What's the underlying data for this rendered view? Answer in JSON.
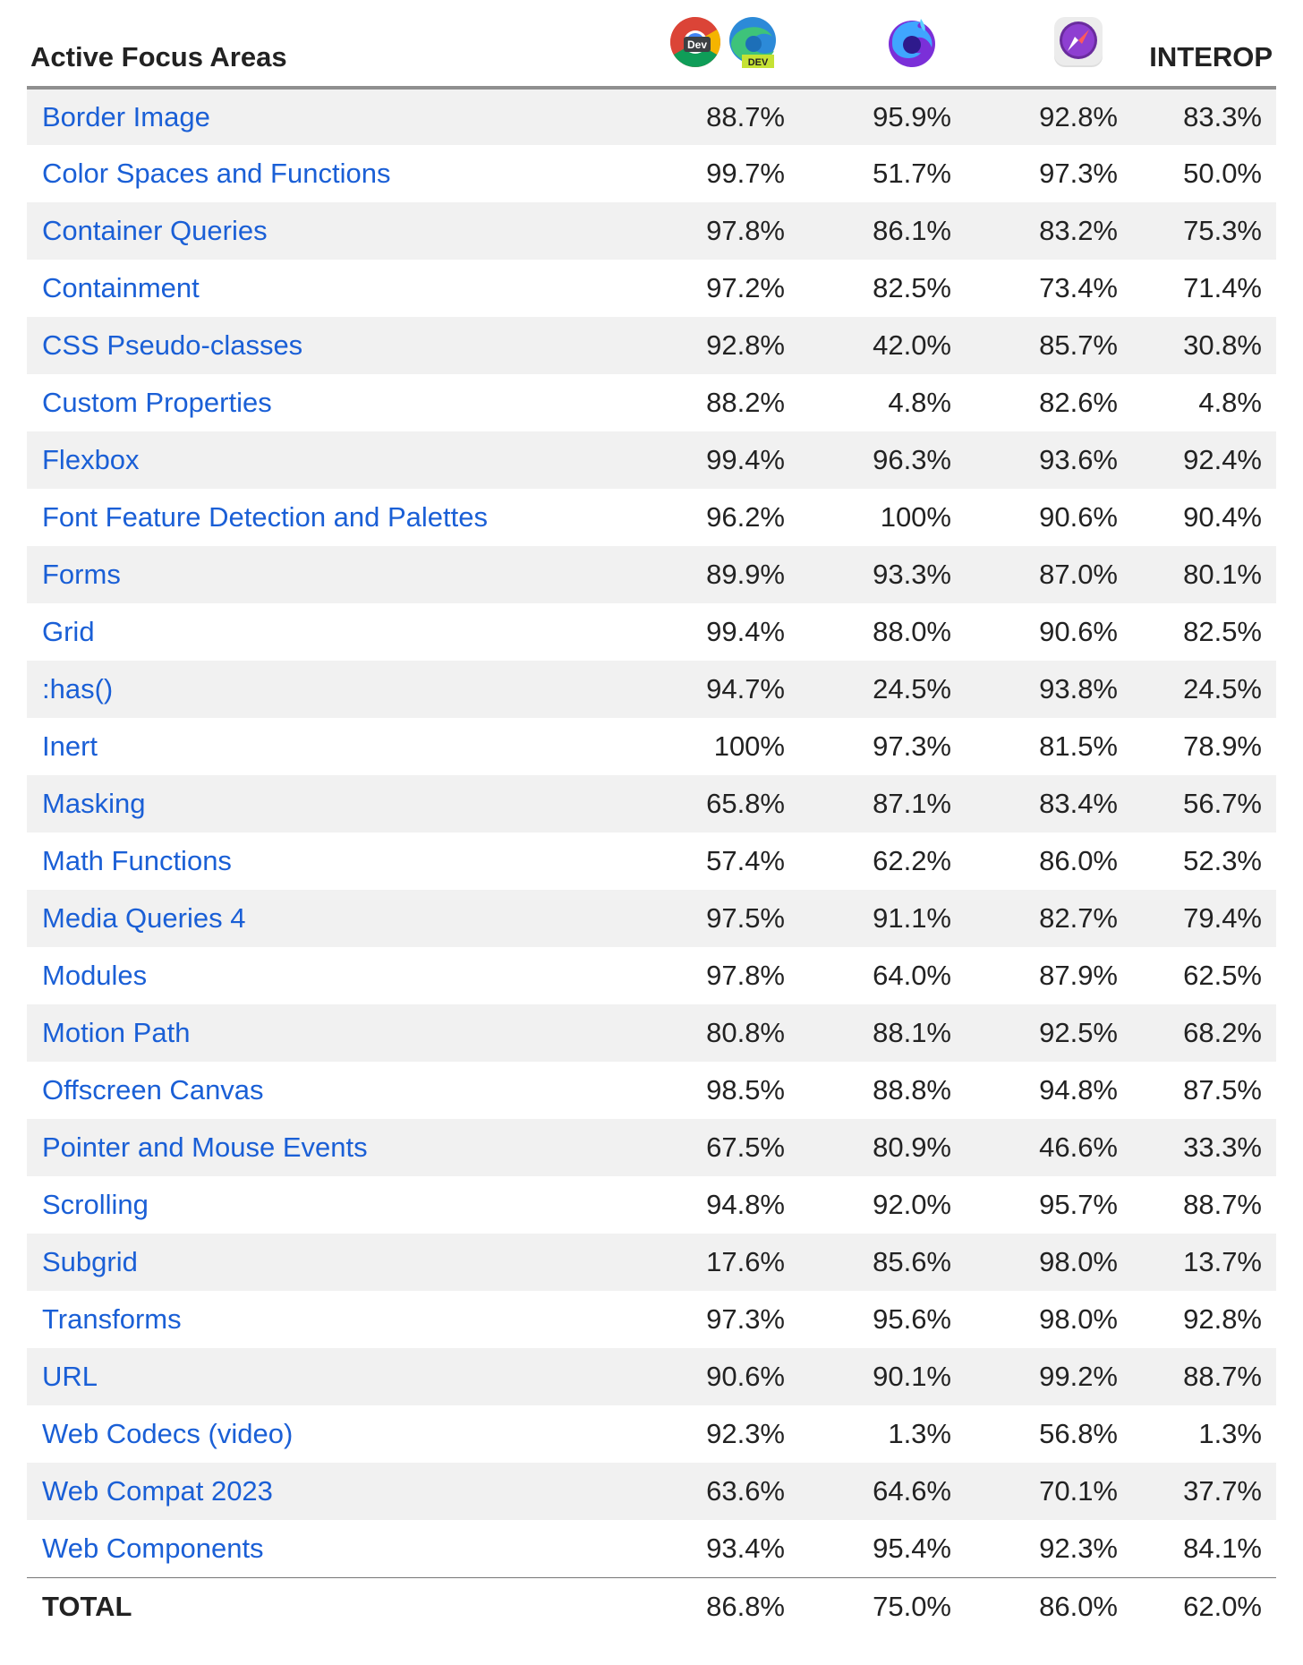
{
  "header": {
    "title": "Active Focus Areas",
    "chrome_badge": "Dev",
    "edge_badge": "DEV",
    "interop_label": "INTEROP"
  },
  "colors": {
    "link": "#1a5fd6",
    "stripe": "#f1f1f1",
    "header_rule": "#8f8f8f"
  },
  "browsers": [
    "chrome-dev-icon + edge-dev-icon",
    "firefox-nightly-icon",
    "safari-technology-preview-icon",
    "interop"
  ],
  "rows": [
    {
      "name": "Border Image",
      "values": [
        "88.7%",
        "95.9%",
        "92.8%",
        "83.3%"
      ]
    },
    {
      "name": "Color Spaces and Functions",
      "values": [
        "99.7%",
        "51.7%",
        "97.3%",
        "50.0%"
      ]
    },
    {
      "name": "Container Queries",
      "values": [
        "97.8%",
        "86.1%",
        "83.2%",
        "75.3%"
      ]
    },
    {
      "name": "Containment",
      "values": [
        "97.2%",
        "82.5%",
        "73.4%",
        "71.4%"
      ]
    },
    {
      "name": "CSS Pseudo-classes",
      "values": [
        "92.8%",
        "42.0%",
        "85.7%",
        "30.8%"
      ]
    },
    {
      "name": "Custom Properties",
      "values": [
        "88.2%",
        "4.8%",
        "82.6%",
        "4.8%"
      ]
    },
    {
      "name": "Flexbox",
      "values": [
        "99.4%",
        "96.3%",
        "93.6%",
        "92.4%"
      ]
    },
    {
      "name": "Font Feature Detection and Palettes",
      "values": [
        "96.2%",
        "100%",
        "90.6%",
        "90.4%"
      ]
    },
    {
      "name": "Forms",
      "values": [
        "89.9%",
        "93.3%",
        "87.0%",
        "80.1%"
      ]
    },
    {
      "name": "Grid",
      "values": [
        "99.4%",
        "88.0%",
        "90.6%",
        "82.5%"
      ]
    },
    {
      "name": ":has()",
      "values": [
        "94.7%",
        "24.5%",
        "93.8%",
        "24.5%"
      ]
    },
    {
      "name": "Inert",
      "values": [
        "100%",
        "97.3%",
        "81.5%",
        "78.9%"
      ]
    },
    {
      "name": "Masking",
      "values": [
        "65.8%",
        "87.1%",
        "83.4%",
        "56.7%"
      ]
    },
    {
      "name": "Math Functions",
      "values": [
        "57.4%",
        "62.2%",
        "86.0%",
        "52.3%"
      ]
    },
    {
      "name": "Media Queries 4",
      "values": [
        "97.5%",
        "91.1%",
        "82.7%",
        "79.4%"
      ]
    },
    {
      "name": "Modules",
      "values": [
        "97.8%",
        "64.0%",
        "87.9%",
        "62.5%"
      ]
    },
    {
      "name": "Motion Path",
      "values": [
        "80.8%",
        "88.1%",
        "92.5%",
        "68.2%"
      ]
    },
    {
      "name": "Offscreen Canvas",
      "values": [
        "98.5%",
        "88.8%",
        "94.8%",
        "87.5%"
      ]
    },
    {
      "name": "Pointer and Mouse Events",
      "values": [
        "67.5%",
        "80.9%",
        "46.6%",
        "33.3%"
      ]
    },
    {
      "name": "Scrolling",
      "values": [
        "94.8%",
        "92.0%",
        "95.7%",
        "88.7%"
      ]
    },
    {
      "name": "Subgrid",
      "values": [
        "17.6%",
        "85.6%",
        "98.0%",
        "13.7%"
      ]
    },
    {
      "name": "Transforms",
      "values": [
        "97.3%",
        "95.6%",
        "98.0%",
        "92.8%"
      ]
    },
    {
      "name": "URL",
      "values": [
        "90.6%",
        "90.1%",
        "99.2%",
        "88.7%"
      ]
    },
    {
      "name": "Web Codecs (video)",
      "values": [
        "92.3%",
        "1.3%",
        "56.8%",
        "1.3%"
      ]
    },
    {
      "name": "Web Compat 2023",
      "values": [
        "63.6%",
        "64.6%",
        "70.1%",
        "37.7%"
      ]
    },
    {
      "name": "Web Components",
      "values": [
        "93.4%",
        "95.4%",
        "92.3%",
        "84.1%"
      ]
    }
  ],
  "total": {
    "name": "TOTAL",
    "values": [
      "86.8%",
      "75.0%",
      "86.0%",
      "62.0%"
    ]
  }
}
